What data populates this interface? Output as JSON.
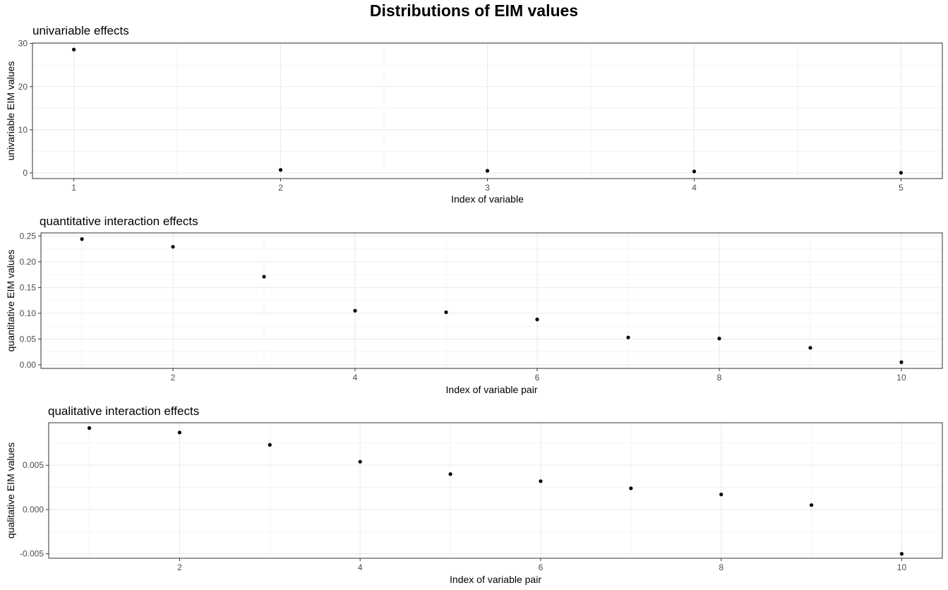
{
  "title": "Distributions of EIM values",
  "chart_data": [
    {
      "type": "scatter",
      "title": "univariable effects",
      "xlabel": "Index of variable",
      "ylabel": "univariable EIM values",
      "x": [
        1,
        2,
        3,
        4,
        5
      ],
      "y": [
        28.6,
        0.7,
        0.5,
        0.35,
        0.05
      ],
      "xlim": [
        0.8,
        5.2
      ],
      "ylim": [
        -1.3,
        30.1
      ],
      "xticks": [
        1,
        2,
        3,
        4,
        5
      ],
      "xtick_labels": [
        "1",
        "2",
        "3",
        "4",
        "5"
      ],
      "yticks": [
        0,
        10,
        20,
        30
      ],
      "ytick_labels": [
        "0",
        "10",
        "20",
        "30"
      ],
      "grid": true
    },
    {
      "type": "scatter",
      "title": "quantitative interaction effects",
      "xlabel": "Index of variable pair",
      "ylabel": "quantitative EIM values",
      "x": [
        1,
        2,
        3,
        4,
        5,
        6,
        7,
        8,
        9,
        10
      ],
      "y": [
        0.244,
        0.229,
        0.171,
        0.105,
        0.102,
        0.088,
        0.053,
        0.051,
        0.033,
        0.005
      ],
      "xlim": [
        0.55,
        10.45
      ],
      "ylim": [
        -0.007,
        0.256
      ],
      "xticks": [
        2,
        4,
        6,
        8,
        10
      ],
      "xtick_labels": [
        "2",
        "4",
        "6",
        "8",
        "10"
      ],
      "yticks": [
        0,
        0.05,
        0.1,
        0.15,
        0.2,
        0.25
      ],
      "ytick_labels": [
        "0.00",
        "0.05",
        "0.10",
        "0.15",
        "0.20",
        "0.25"
      ],
      "grid": true
    },
    {
      "type": "scatter",
      "title": "qualitative interaction effects",
      "xlabel": "Index of variable pair",
      "ylabel": "qualitative EIM values",
      "x": [
        1,
        2,
        3,
        4,
        5,
        6,
        7,
        8,
        9,
        10
      ],
      "y": [
        0.0092,
        0.0087,
        0.0073,
        0.0054,
        0.004,
        0.0032,
        0.0024,
        0.0017,
        0.0005,
        -0.005
      ],
      "xlim": [
        0.55,
        10.45
      ],
      "ylim": [
        -0.0055,
        0.0098
      ],
      "xticks": [
        2,
        4,
        6,
        8,
        10
      ],
      "xtick_labels": [
        "2",
        "4",
        "6",
        "8",
        "10"
      ],
      "yticks": [
        -0.005,
        0,
        0.005
      ],
      "ytick_labels": [
        "-0.005",
        "0.000",
        "0.005"
      ],
      "grid": true
    }
  ]
}
